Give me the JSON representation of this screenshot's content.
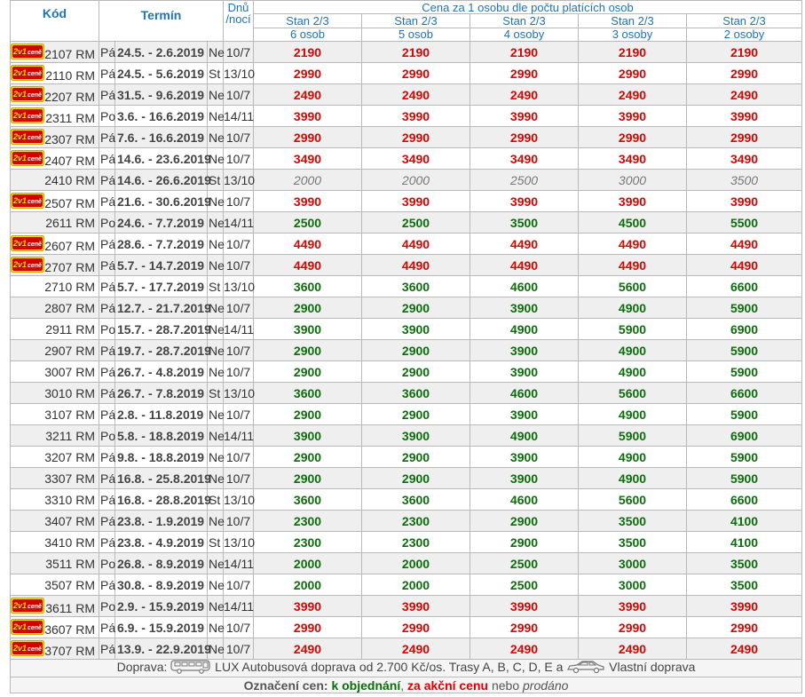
{
  "header": {
    "kod": "Kód",
    "termin": "Termín",
    "dnu": "Dnů",
    "noci": "/nocí",
    "main": "Cena za 1 osobu dle počtu platících osob",
    "stan": "Stan 2/3",
    "osoby": [
      "6 osob",
      "5 osob",
      "4 osoby",
      "3 osoby",
      "2 osoby"
    ]
  },
  "colors": {
    "red": "#e00000",
    "green": "#0a6e0a",
    "sold": "#777777",
    "header_blue": "#1e73be"
  },
  "badge_text": "2v1 ceně",
  "rows": [
    {
      "badge": true,
      "code": "2107 RM",
      "day": "Pá",
      "term": "24.5. - 2.6.2019",
      "dn": "Ne",
      "n": "10/7",
      "status": "red",
      "p": [
        "2190",
        "2190",
        "2190",
        "2190",
        "2190"
      ]
    },
    {
      "badge": true,
      "code": "2110 RM",
      "day": "Pá",
      "term": "24.5. - 5.6.2019",
      "dn": "St",
      "n": "13/10",
      "status": "red",
      "p": [
        "2990",
        "2990",
        "2990",
        "2990",
        "2990"
      ]
    },
    {
      "badge": true,
      "code": "2207 RM",
      "day": "Pá",
      "term": "31.5. - 9.6.2019",
      "dn": "Ne",
      "n": "10/7",
      "status": "red",
      "p": [
        "2490",
        "2490",
        "2490",
        "2490",
        "2490"
      ]
    },
    {
      "badge": true,
      "code": "2311 RM",
      "day": "Po",
      "term": "3.6. - 16.6.2019",
      "dn": "Ne",
      "n": "14/11",
      "status": "red",
      "p": [
        "3990",
        "3990",
        "3990",
        "3990",
        "3990"
      ]
    },
    {
      "badge": true,
      "code": "2307 RM",
      "day": "Pá",
      "term": "7.6. - 16.6.2019",
      "dn": "Ne",
      "n": "10/7",
      "status": "red",
      "p": [
        "2990",
        "2990",
        "2990",
        "2990",
        "2990"
      ]
    },
    {
      "badge": true,
      "code": "2407 RM",
      "day": "Pá",
      "term": "14.6. - 23.6.2019",
      "dn": "Ne",
      "n": "10/7",
      "status": "red",
      "p": [
        "3490",
        "3490",
        "3490",
        "3490",
        "3490"
      ]
    },
    {
      "badge": false,
      "code": "2410 RM",
      "day": "Pá",
      "term": "14.6. - 26.6.2019",
      "dn": "St",
      "n": "13/10",
      "status": "sold",
      "p": [
        "2000",
        "2000",
        "2500",
        "3000",
        "3500"
      ]
    },
    {
      "badge": true,
      "code": "2507 RM",
      "day": "Pá",
      "term": "21.6. - 30.6.2019",
      "dn": "Ne",
      "n": "10/7",
      "status": "red",
      "p": [
        "3990",
        "3990",
        "3990",
        "3990",
        "3990"
      ]
    },
    {
      "badge": false,
      "code": "2611 RM",
      "day": "Po",
      "term": "24.6. - 7.7.2019",
      "dn": "Ne",
      "n": "14/11",
      "status": "green",
      "p": [
        "2500",
        "2500",
        "3500",
        "4500",
        "5500"
      ]
    },
    {
      "badge": true,
      "code": "2607 RM",
      "day": "Pá",
      "term": "28.6. - 7.7.2019",
      "dn": "Ne",
      "n": "10/7",
      "status": "red",
      "p": [
        "4490",
        "4490",
        "4490",
        "4490",
        "4490"
      ]
    },
    {
      "badge": true,
      "code": "2707 RM",
      "day": "Pá",
      "term": "5.7. - 14.7.2019",
      "dn": "Ne",
      "n": "10/7",
      "status": "red",
      "p": [
        "4490",
        "4490",
        "4490",
        "4490",
        "4490"
      ]
    },
    {
      "badge": false,
      "code": "2710 RM",
      "day": "Pá",
      "term": "5.7. - 17.7.2019",
      "dn": "St",
      "n": "13/10",
      "status": "green",
      "p": [
        "3600",
        "3600",
        "4600",
        "5600",
        "6600"
      ]
    },
    {
      "badge": false,
      "code": "2807 RM",
      "day": "Pá",
      "term": "12.7. - 21.7.2019",
      "dn": "Ne",
      "n": "10/7",
      "status": "green",
      "p": [
        "2900",
        "2900",
        "3900",
        "4900",
        "5900"
      ]
    },
    {
      "badge": false,
      "code": "2911 RM",
      "day": "Po",
      "term": "15.7. - 28.7.2019",
      "dn": "Ne",
      "n": "14/11",
      "status": "green",
      "p": [
        "3900",
        "3900",
        "4900",
        "5900",
        "6900"
      ]
    },
    {
      "badge": false,
      "code": "2907 RM",
      "day": "Pá",
      "term": "19.7. - 28.7.2019",
      "dn": "Ne",
      "n": "10/7",
      "status": "green",
      "p": [
        "2900",
        "2900",
        "3900",
        "4900",
        "5900"
      ]
    },
    {
      "badge": false,
      "code": "3007 RM",
      "day": "Pá",
      "term": "26.7. - 4.8.2019",
      "dn": "Ne",
      "n": "10/7",
      "status": "green",
      "p": [
        "2900",
        "2900",
        "3900",
        "4900",
        "5900"
      ]
    },
    {
      "badge": false,
      "code": "3010 RM",
      "day": "Pá",
      "term": "26.7. - 7.8.2019",
      "dn": "St",
      "n": "13/10",
      "status": "green",
      "p": [
        "3600",
        "3600",
        "4600",
        "5600",
        "6600"
      ]
    },
    {
      "badge": false,
      "code": "3107 RM",
      "day": "Pá",
      "term": "2.8. - 11.8.2019",
      "dn": "Ne",
      "n": "10/7",
      "status": "green",
      "p": [
        "2900",
        "2900",
        "3900",
        "4900",
        "5900"
      ]
    },
    {
      "badge": false,
      "code": "3211 RM",
      "day": "Po",
      "term": "5.8. - 18.8.2019",
      "dn": "Ne",
      "n": "14/11",
      "status": "green",
      "p": [
        "3900",
        "3900",
        "4900",
        "5900",
        "6900"
      ]
    },
    {
      "badge": false,
      "code": "3207 RM",
      "day": "Pá",
      "term": "9.8. - 18.8.2019",
      "dn": "Ne",
      "n": "10/7",
      "status": "green",
      "p": [
        "2900",
        "2900",
        "3900",
        "4900",
        "5900"
      ]
    },
    {
      "badge": false,
      "code": "3307 RM",
      "day": "Pá",
      "term": "16.8. - 25.8.2019",
      "dn": "Ne",
      "n": "10/7",
      "status": "green",
      "p": [
        "2900",
        "2900",
        "3900",
        "4900",
        "5900"
      ]
    },
    {
      "badge": false,
      "code": "3310 RM",
      "day": "Pá",
      "term": "16.8. - 28.8.2019",
      "dn": "St",
      "n": "13/10",
      "status": "green",
      "p": [
        "3600",
        "3600",
        "4600",
        "5600",
        "6600"
      ]
    },
    {
      "badge": false,
      "code": "3407 RM",
      "day": "Pá",
      "term": "23.8. - 1.9.2019",
      "dn": "Ne",
      "n": "10/7",
      "status": "green",
      "p": [
        "2300",
        "2300",
        "2900",
        "3500",
        "4100"
      ]
    },
    {
      "badge": false,
      "code": "3410 RM",
      "day": "Pá",
      "term": "23.8. - 4.9.2019",
      "dn": "St",
      "n": "13/10",
      "status": "green",
      "p": [
        "2300",
        "2300",
        "2900",
        "3500",
        "4100"
      ]
    },
    {
      "badge": false,
      "code": "3511 RM",
      "day": "Po",
      "term": "26.8. - 8.9.2019",
      "dn": "Ne",
      "n": "14/11",
      "status": "green",
      "p": [
        "2000",
        "2000",
        "2500",
        "3000",
        "3500"
      ]
    },
    {
      "badge": false,
      "code": "3507 RM",
      "day": "Pá",
      "term": "30.8. - 8.9.2019",
      "dn": "Ne",
      "n": "10/7",
      "status": "green",
      "p": [
        "2000",
        "2000",
        "2500",
        "3000",
        "3500"
      ]
    },
    {
      "badge": true,
      "code": "3611 RM",
      "day": "Po",
      "term": "2.9. - 15.9.2019",
      "dn": "Ne",
      "n": "14/11",
      "status": "red",
      "p": [
        "3990",
        "3990",
        "3990",
        "3990",
        "3990"
      ]
    },
    {
      "badge": true,
      "code": "3607 RM",
      "day": "Pá",
      "term": "6.9. - 15.9.2019",
      "dn": "Ne",
      "n": "10/7",
      "status": "red",
      "p": [
        "2990",
        "2990",
        "2990",
        "2990",
        "2990"
      ]
    },
    {
      "badge": true,
      "code": "3707 RM",
      "day": "Pá",
      "term": "13.9. - 22.9.2019",
      "dn": "Ne",
      "n": "10/7",
      "status": "red",
      "p": [
        "2490",
        "2490",
        "2490",
        "2490",
        "2490"
      ]
    }
  ],
  "footer": {
    "doprava_label": "Doprava:",
    "bus_text": "LUX Autobusová doprava od 2.700 Kč/os. Trasy A, B, C, D, E a",
    "car_text": "Vlastní doprava",
    "legend_title": "Označení cen:",
    "legend_green": "k objednání",
    "legend_sep1": ",",
    "legend_red": "za akční cenu",
    "legend_or": "nebo",
    "legend_sold": "prodáno"
  }
}
